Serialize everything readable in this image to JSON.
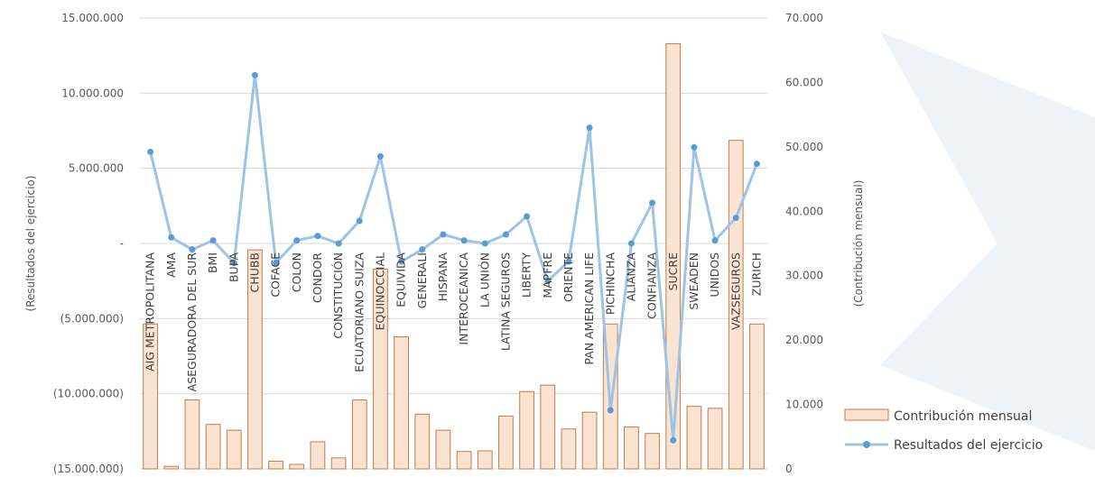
{
  "chart_data": {
    "type": "bar",
    "categories": [
      "AIG METROPOLITANA",
      "AMA",
      "ASEGURADORA DEL SUR",
      "BMI",
      "BUPA",
      "CHUBB",
      "COFACE",
      "COLON",
      "CONDOR",
      "CONSTITUCIÓN",
      "ECUATORIANO SUIZA",
      "EQUINOCCIAL",
      "EQUIVIDA",
      "GENERALI",
      "HISPANA",
      "INTEROCEANICA",
      "LA UNIÓN",
      "LATINA SEGUROS",
      "LIBERTY",
      "MAPFRE",
      "ORIENTE",
      "PAN AMERICAN LIFE",
      "PICHINCHA",
      "ALIANZA",
      "CONFIANZA",
      "SUCRE",
      "SWEADEN",
      "UNIDOS",
      "VAZSEGUROS",
      "ZURICH"
    ],
    "series": [
      {
        "name": "Contribución mensual",
        "axis": "right",
        "type": "bar",
        "values": [
          22500,
          400,
          10700,
          6900,
          6000,
          34000,
          1200,
          700,
          4200,
          1700,
          10700,
          31000,
          20500,
          8500,
          6000,
          2700,
          2800,
          8200,
          12000,
          13000,
          6200,
          8800,
          22500,
          6500,
          5500,
          66000,
          9700,
          9400,
          51000,
          22500
        ]
      },
      {
        "name": "Resultados del ejercicio",
        "axis": "left",
        "type": "line",
        "values": [
          6100000,
          400000,
          -400000,
          200000,
          -1300000,
          11200000,
          -1300000,
          200000,
          500000,
          0,
          1500000,
          5800000,
          -1200000,
          -400000,
          600000,
          200000,
          0,
          600000,
          1800000,
          -2500000,
          -1200000,
          7700000,
          -11100000,
          0,
          2700000,
          -13100000,
          6400000,
          200000,
          1700000,
          5300000
        ]
      }
    ],
    "left_axis": {
      "label": "(Resultados del ejercicio)",
      "ylim": [
        -15000000,
        15000000
      ],
      "ticks": [
        "15.000.000",
        "10.000.000",
        "5.000.000",
        "-",
        "(5.000.000)",
        "(10.000.000)",
        "(15.000.000)"
      ]
    },
    "right_axis": {
      "label": "(Contribución mensual)",
      "ylim": [
        0,
        70000
      ],
      "ticks": [
        "70.000",
        "60.000",
        "50.000",
        "40.000",
        "30.000",
        "20.000",
        "10.000",
        "0"
      ]
    },
    "legend": {
      "placement": "bottom-right",
      "items": [
        "Contribución mensual",
        "Resultados del ejercicio"
      ]
    },
    "grid": true
  },
  "colors": {
    "bar_fill": "#fbe3d2",
    "bar_stroke": "#c07b4d",
    "line": "#9dc3e6",
    "marker": "#5b9bd5",
    "grid": "#d9d9d9",
    "watermark": "#eef3fa"
  }
}
